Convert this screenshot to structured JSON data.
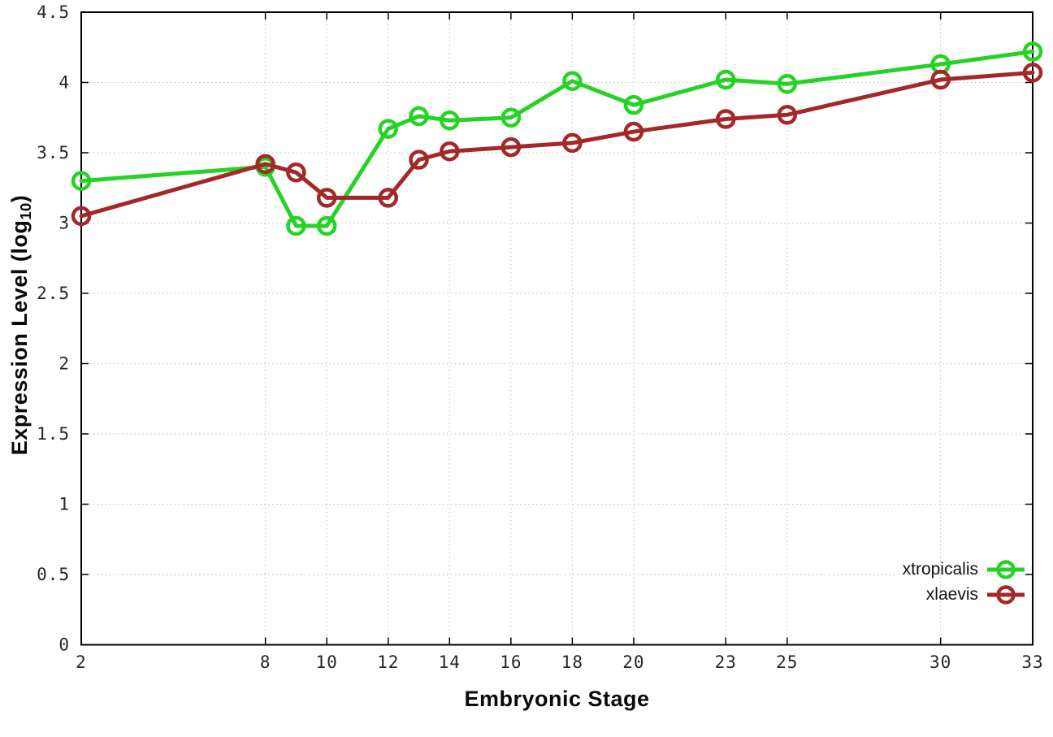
{
  "chart_data": {
    "type": "line",
    "title": "",
    "xlabel": "Embryonic Stage",
    "ylabel": "Expression Level (log10)",
    "ylabel_parts": {
      "main": "Expression Level (log",
      "sub": "10",
      "end": ")"
    },
    "x": [
      2,
      8,
      9,
      10,
      12,
      13,
      14,
      16,
      18,
      20,
      23,
      25,
      30,
      33
    ],
    "series": [
      {
        "name": "xtropicalis",
        "color": "#25d225",
        "values": [
          3.3,
          3.4,
          2.98,
          2.98,
          3.67,
          3.76,
          3.73,
          3.75,
          4.01,
          3.84,
          4.02,
          3.99,
          4.13,
          4.22
        ]
      },
      {
        "name": "xlaevis",
        "color": "#a32828",
        "values": [
          3.05,
          3.42,
          3.36,
          3.18,
          3.18,
          3.45,
          3.51,
          3.54,
          3.57,
          3.65,
          3.74,
          3.77,
          4.02,
          4.07
        ]
      }
    ],
    "xlim": [
      2,
      33
    ],
    "ylim": [
      0,
      4.5
    ],
    "xticks": [
      2,
      8,
      10,
      12,
      14,
      16,
      18,
      20,
      23,
      25,
      30,
      33
    ],
    "ytick_values": [
      0,
      0.5,
      1,
      1.5,
      2,
      2.5,
      3,
      3.5,
      4,
      4.5
    ],
    "ytick_labels": [
      "0",
      "0.5",
      "1",
      "1.5",
      "2",
      "2.5",
      "3",
      "3.5",
      "4",
      "4.5"
    ],
    "grid": true,
    "legend_position": "bottom-right",
    "colors": {
      "border": "#000000",
      "grid": "#c2c2c2",
      "background": "#ffffff",
      "tick_text": "#262626"
    }
  }
}
